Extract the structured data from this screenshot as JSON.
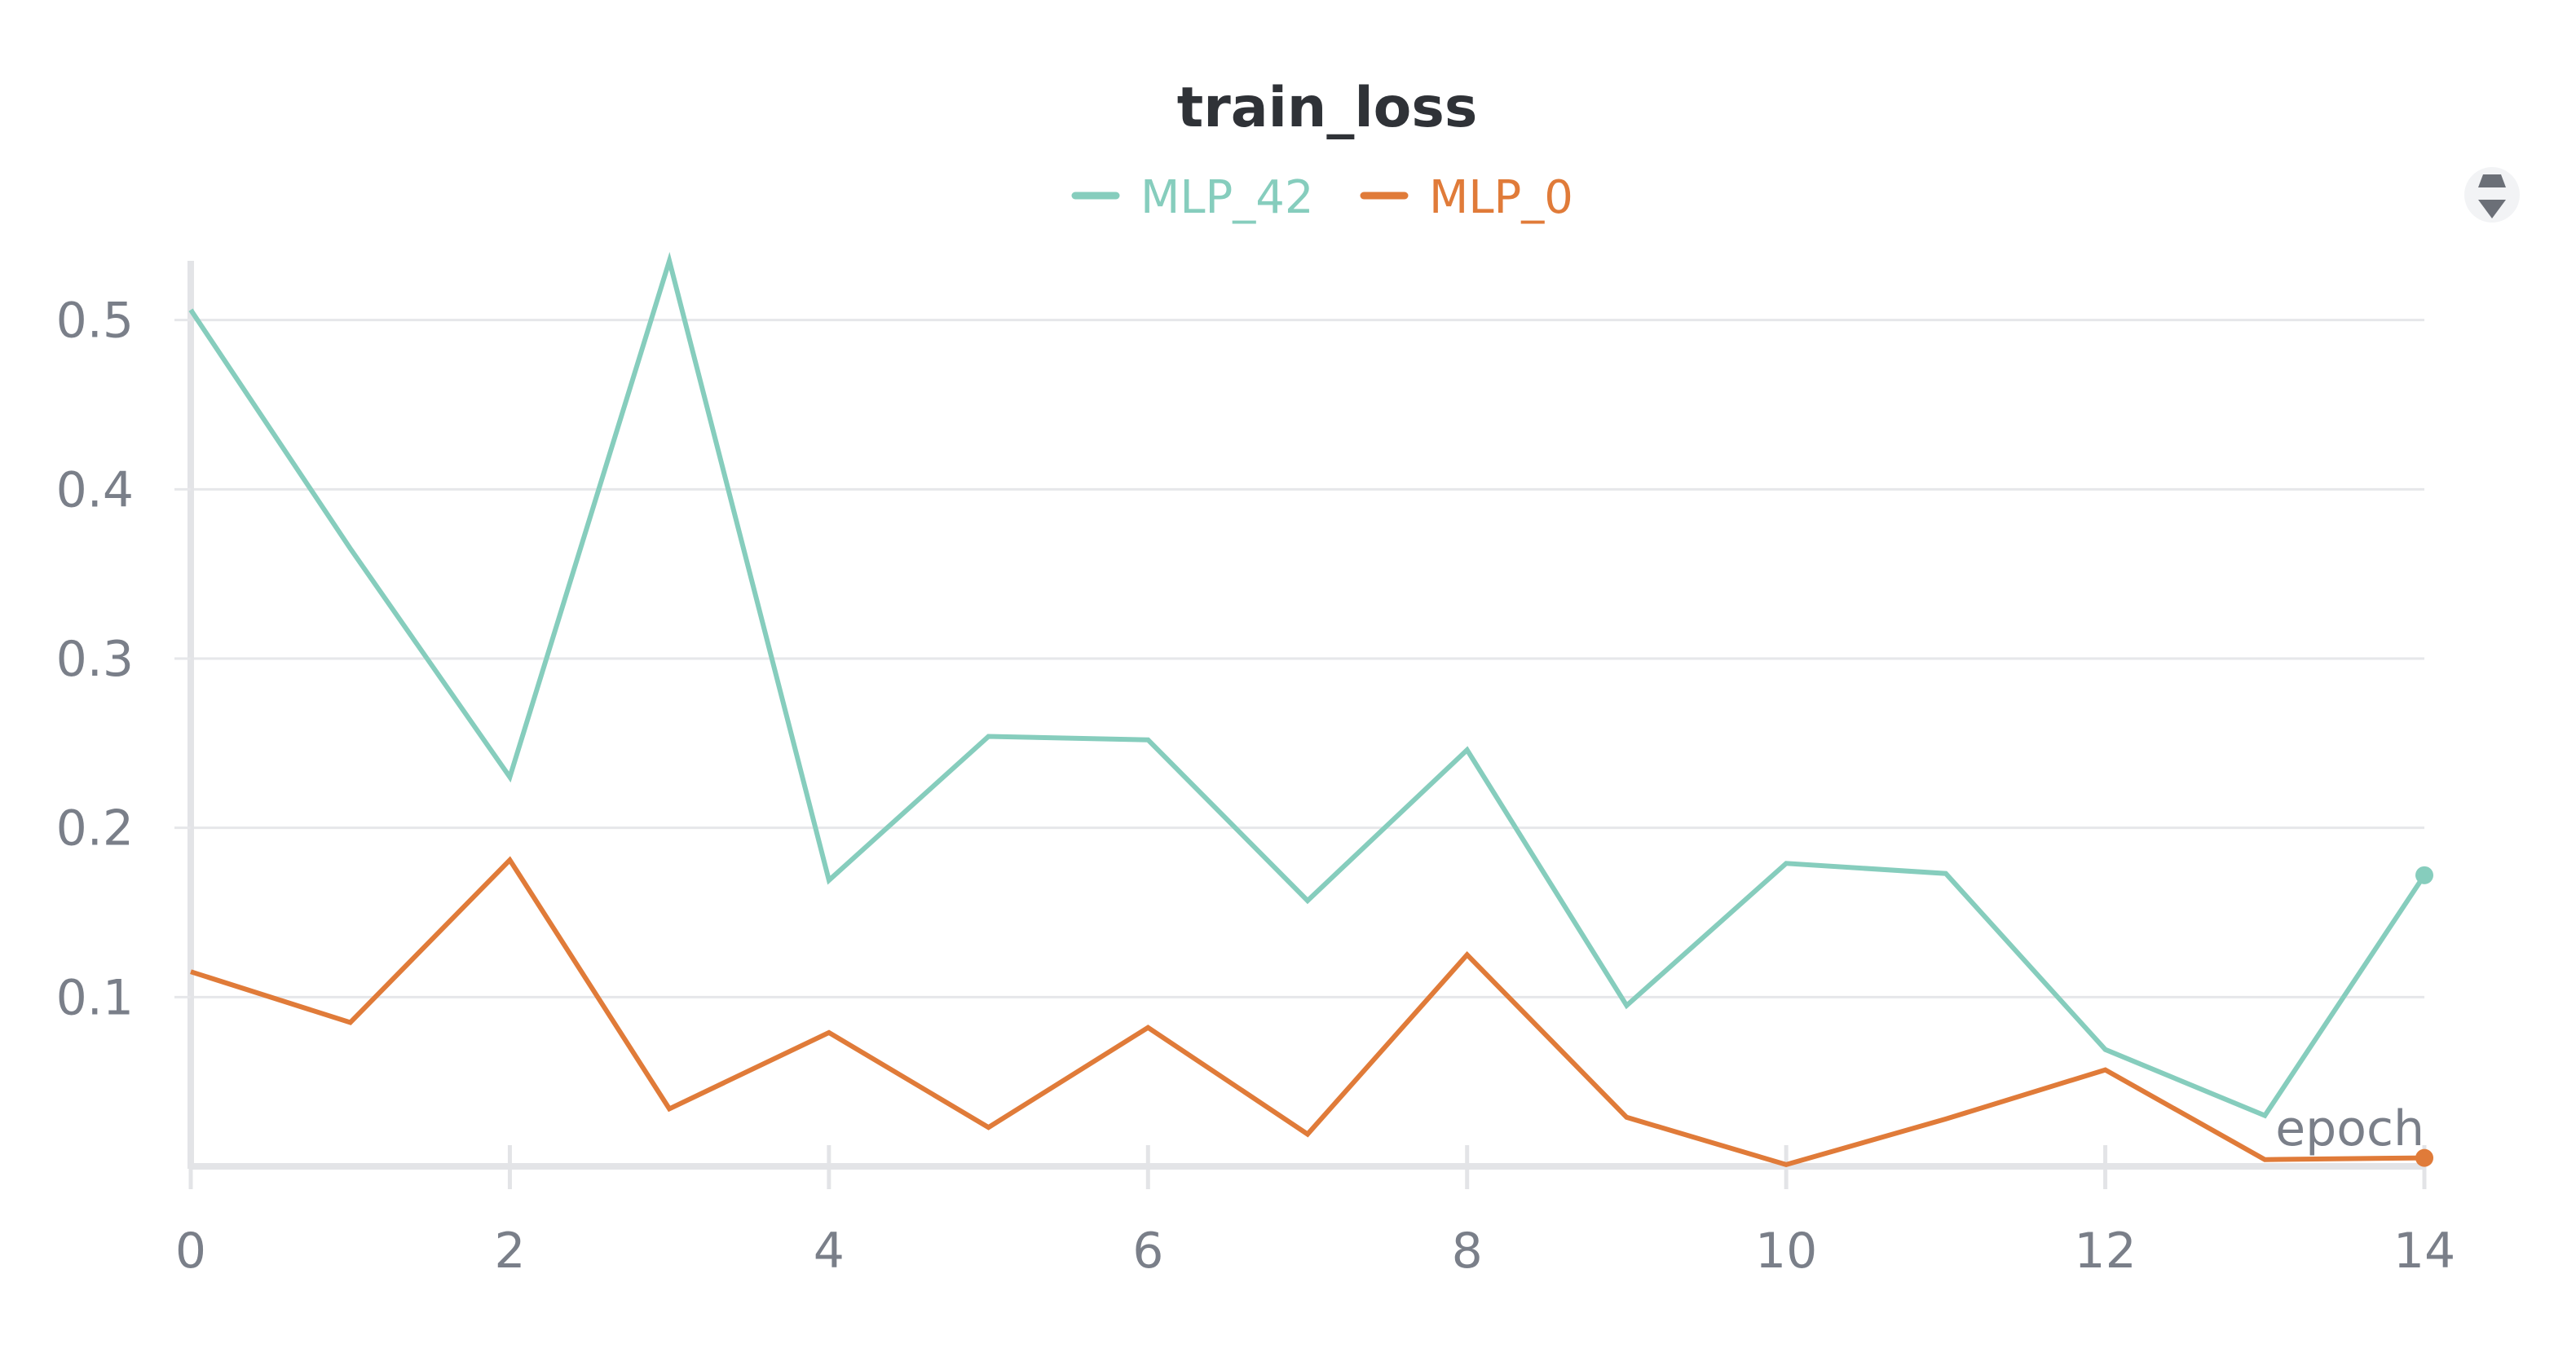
{
  "chart_data": {
    "type": "line",
    "title": "train_loss",
    "xlabel": "epoch",
    "ylabel": "",
    "x": [
      0,
      1,
      2,
      3,
      4,
      5,
      6,
      7,
      8,
      9,
      10,
      11,
      12,
      13,
      14
    ],
    "xlim": [
      0,
      14
    ],
    "ylim": [
      0,
      0.535
    ],
    "x_ticks": [
      0,
      2,
      4,
      6,
      8,
      10,
      12,
      14
    ],
    "y_ticks": [
      0.1,
      0.2,
      0.3,
      0.4,
      0.5
    ],
    "grid": "horizontal",
    "legend_position": "top-center",
    "series": [
      {
        "name": "MLP_42",
        "color": "#86cdbd",
        "values": [
          0.506,
          0.365,
          0.23,
          0.535,
          0.169,
          0.254,
          0.252,
          0.157,
          0.246,
          0.095,
          0.179,
          0.173,
          0.069,
          0.03,
          0.172
        ]
      },
      {
        "name": "MLP_0",
        "color": "#e07b39",
        "values": [
          0.115,
          0.085,
          0.181,
          0.034,
          0.079,
          0.023,
          0.082,
          0.019,
          0.125,
          0.029,
          0.001,
          0.028,
          0.057,
          0.004,
          0.005
        ]
      }
    ]
  },
  "controls": {
    "legend_toggle_icon": "sort-arrows-icon"
  }
}
